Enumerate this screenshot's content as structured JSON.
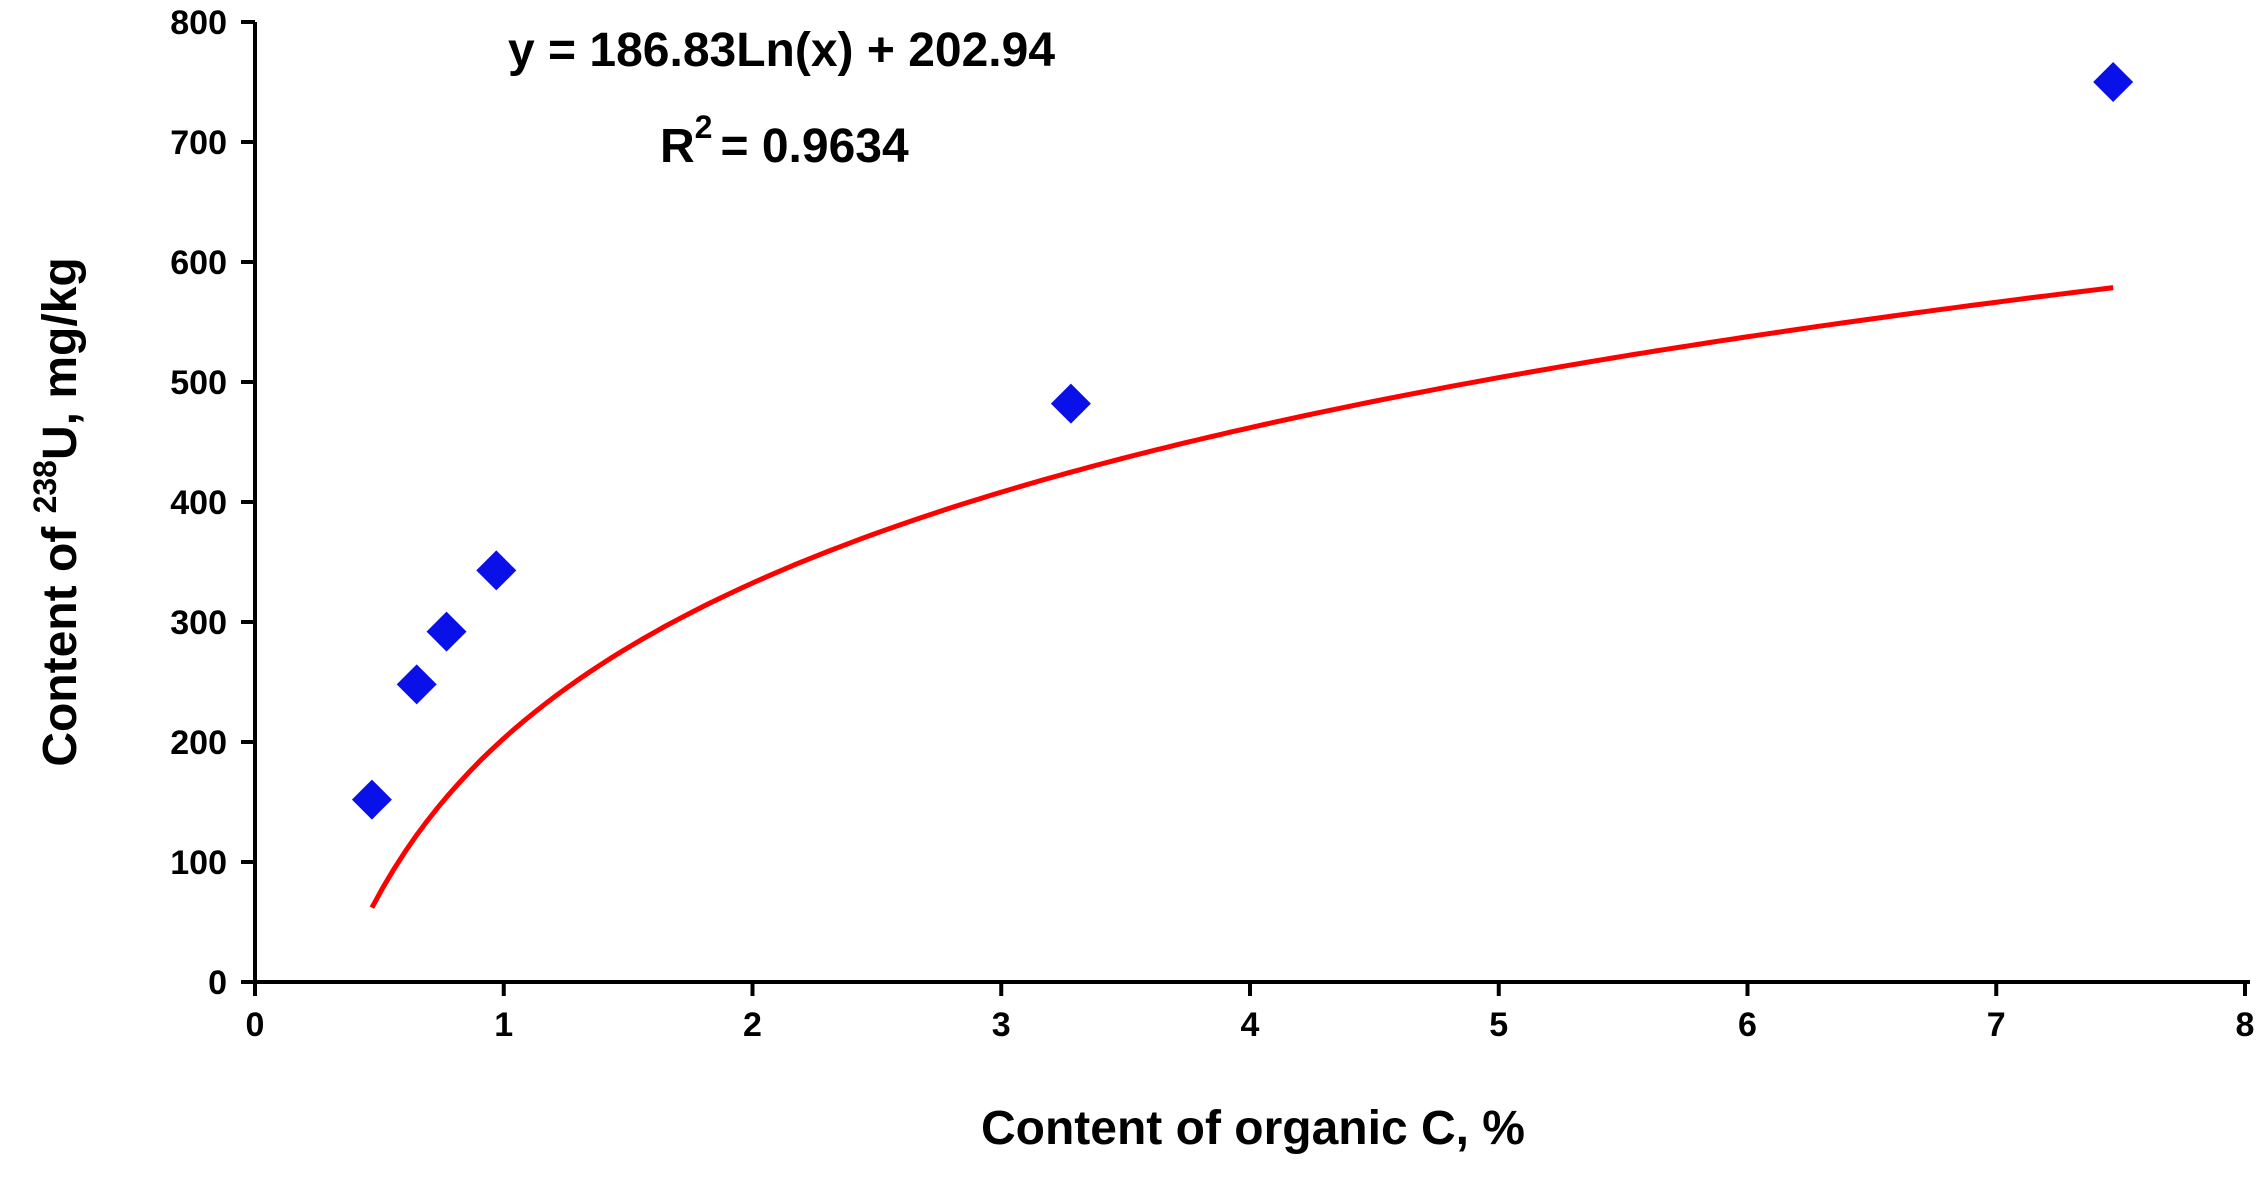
{
  "chart_data": {
    "type": "scatter",
    "x_label": "Content of organic C, %",
    "y_label": {
      "prefix": "Content of ",
      "superscript": "238",
      "suffix": "U, mg/kg"
    },
    "xlim": [
      0,
      8
    ],
    "ylim": [
      0,
      800
    ],
    "x_ticks": [
      "0",
      "1",
      "2",
      "3",
      "4",
      "5",
      "6",
      "7",
      "8"
    ],
    "y_ticks": [
      "0",
      "100",
      "200",
      "300",
      "400",
      "500",
      "600",
      "700",
      "800"
    ],
    "grid": false,
    "legend": false,
    "series": [
      {
        "marker": "diamond",
        "color": "#0a10e8",
        "points": [
          {
            "x": 0.47,
            "y": 152
          },
          {
            "x": 0.65,
            "y": 248
          },
          {
            "x": 0.77,
            "y": 292
          },
          {
            "x": 0.97,
            "y": 343
          },
          {
            "x": 3.28,
            "y": 482
          },
          {
            "x": 7.47,
            "y": 750
          }
        ]
      }
    ],
    "trendline": {
      "kind": "logarithmic",
      "a": 186.83,
      "b": 202.94,
      "x_range": [
        0.47,
        7.47
      ],
      "color": "#ff0000"
    },
    "annotations": {
      "equation": "y = 186.83Ln(x) + 202.94",
      "r_squared_base": "R",
      "r_squared_exp": "2",
      "r_squared_value": "= 0.9634"
    }
  }
}
